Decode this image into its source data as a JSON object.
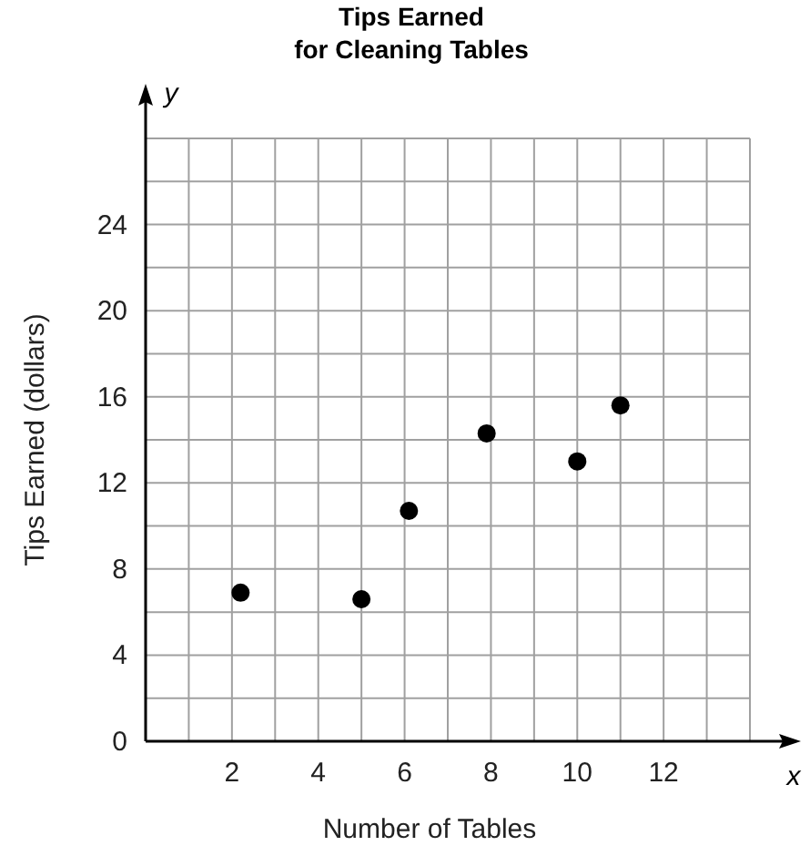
{
  "chart_data": {
    "type": "scatter",
    "title": "Tips Earned for Cleaning Tables",
    "xlabel": "Number of Tables",
    "ylabel": "Tips Earned (dollars)",
    "annotations": [
      "x",
      "y"
    ],
    "x": [
      2.2,
      5,
      6.1,
      7.9,
      10,
      11
    ],
    "values": [
      6.9,
      6.6,
      10.7,
      14.3,
      13,
      15.6
    ],
    "color": "#000000",
    "marker": "circle",
    "grid": true,
    "xlim": [
      0,
      14
    ],
    "ylim": [
      0,
      28
    ],
    "xticks": [
      {
        "value": 1,
        "label": null
      },
      2,
      {
        "value": 3,
        "label": null
      },
      4,
      {
        "value": 5,
        "label": null
      },
      6,
      {
        "value": 7,
        "label": null
      },
      8,
      {
        "value": 9,
        "label": null
      },
      10,
      {
        "value": 11,
        "label": null
      },
      12,
      {
        "value": 13,
        "label": null
      },
      {
        "value": 14,
        "label": null
      }
    ],
    "yticks": [
      0,
      {
        "value": 2,
        "label": null
      },
      4,
      {
        "value": 6,
        "label": null
      },
      8,
      {
        "value": 10,
        "label": null
      },
      12,
      {
        "value": 14,
        "label": null
      },
      16,
      {
        "value": 18,
        "label": null
      },
      20,
      {
        "value": 22,
        "label": null
      },
      24,
      {
        "value": 26,
        "label": null
      },
      {
        "value": 28,
        "label": null
      }
    ]
  }
}
